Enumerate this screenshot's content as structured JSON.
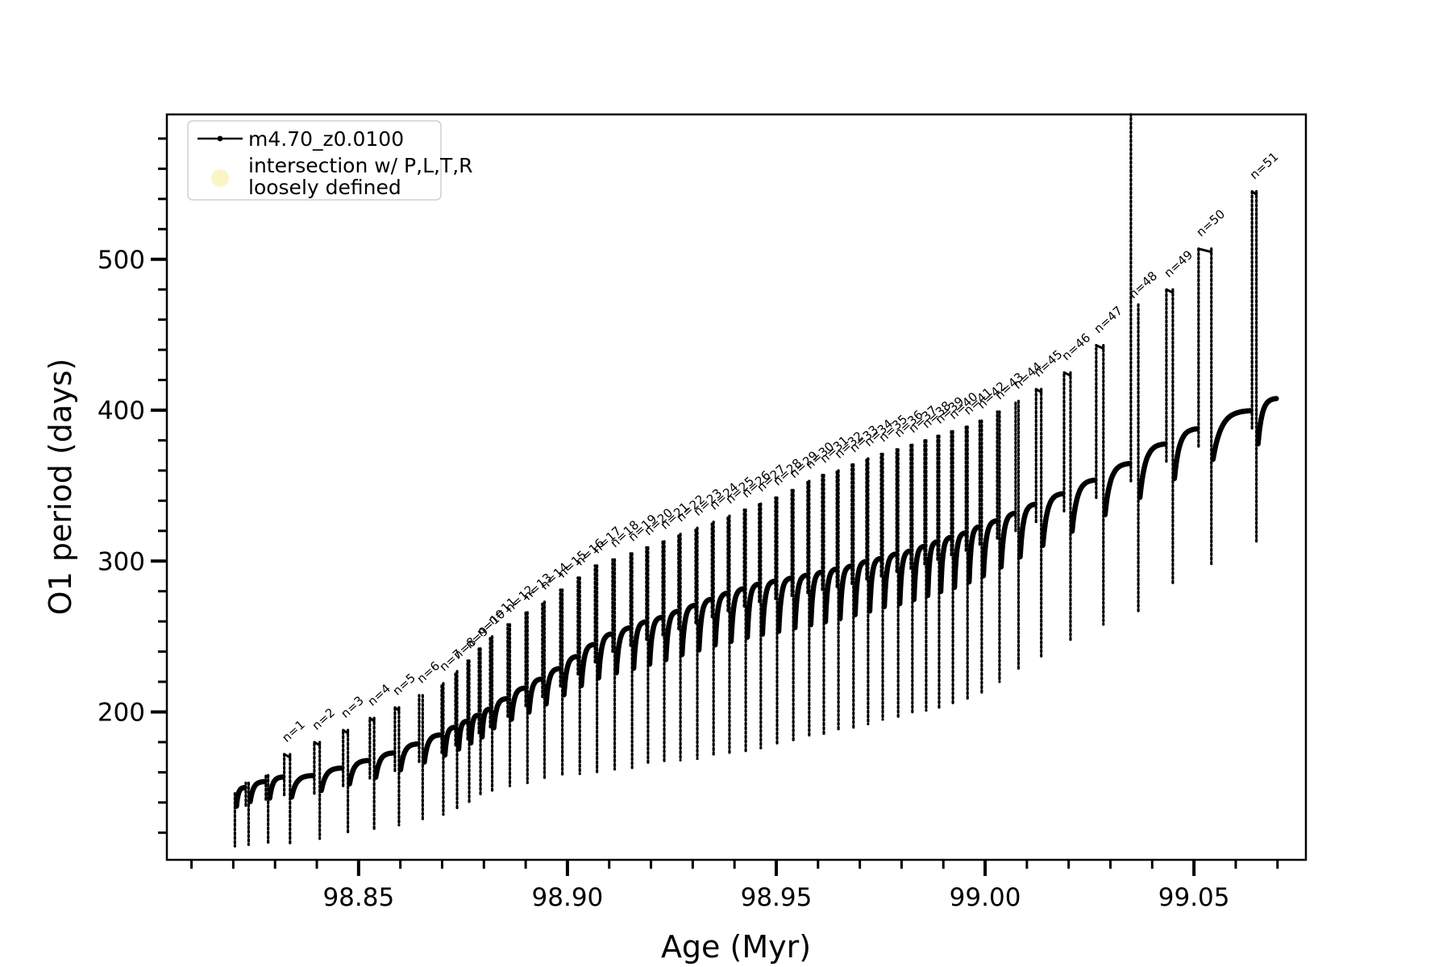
{
  "chart_data": {
    "type": "line",
    "title": "",
    "xlabel": "Age (Myr)",
    "ylabel": "O1 period (days)",
    "xlim": [
      98.8041,
      99.0768
    ],
    "ylim": [
      102,
      596
    ],
    "x_major_ticks": [
      98.85,
      98.9,
      98.95,
      99.0,
      99.05
    ],
    "x_minor_step": 0.01,
    "y_major_ticks": [
      200,
      300,
      400,
      500
    ],
    "y_minor_step": 20,
    "grid": false,
    "legend_position": "upper-left",
    "series_color": "#000000",
    "legend": {
      "entries": [
        {
          "type": "line-dot-marker",
          "label": "m4.70_z0.0100",
          "color": "#000000"
        },
        {
          "type": "circle-marker",
          "line1": "intersection w/ P,L,T,R",
          "line2": "loosely defined",
          "color": "#faf6c3"
        }
      ]
    },
    "series_label": "m4.70_z0.0100",
    "track_start": {
      "age": 98.82,
      "period": 146
    },
    "track_end": {
      "age": 99.07,
      "period": 408
    },
    "pulse_label_format": "n=",
    "pulses": [
      {
        "n": null,
        "age": 98.82,
        "spike": 146,
        "dip": 111,
        "fin_top": 150
      },
      {
        "n": null,
        "age": 98.823,
        "spike": 153,
        "dip": 112,
        "fin_top": 154
      },
      {
        "n": null,
        "age": 98.8278,
        "spike": 158,
        "dip": 113,
        "fin_top": 157
      },
      {
        "n": 1,
        "age": 98.8322,
        "spike": 172,
        "dip": 113,
        "fin_top": 158
      },
      {
        "n": 2,
        "age": 98.8394,
        "spike": 180,
        "dip": 116,
        "fin_top": 163
      },
      {
        "n": 3,
        "age": 98.8463,
        "spike": 188,
        "dip": 119,
        "fin_top": 168
      },
      {
        "n": 4,
        "age": 98.8527,
        "spike": 196,
        "dip": 122,
        "fin_top": 173
      },
      {
        "n": 5,
        "age": 98.8587,
        "spike": 203,
        "dip": 125,
        "fin_top": 179
      },
      {
        "n": 6,
        "age": 98.8645,
        "spike": 211,
        "dip": 128,
        "fin_top": 185
      },
      {
        "n": 7,
        "age": 98.8699,
        "spike": 219,
        "dip": 132,
        "fin_top": 190
      },
      {
        "n": 8,
        "age": 98.8732,
        "spike": 227,
        "dip": 136,
        "fin_top": 194
      },
      {
        "n": 9,
        "age": 98.8761,
        "spike": 234,
        "dip": 140,
        "fin_top": 198
      },
      {
        "n": 10,
        "age": 98.8788,
        "spike": 242,
        "dip": 144,
        "fin_top": 202
      },
      {
        "n": 11,
        "age": 98.8815,
        "spike": 250,
        "dip": 148,
        "fin_top": 209
      },
      {
        "n": 12,
        "age": 98.8857,
        "spike": 258,
        "dip": 151,
        "fin_top": 216
      },
      {
        "n": 13,
        "age": 98.89,
        "spike": 266,
        "dip": 153,
        "fin_top": 222
      },
      {
        "n": 14,
        "age": 98.894,
        "spike": 273,
        "dip": 155,
        "fin_top": 229
      },
      {
        "n": 15,
        "age": 98.8983,
        "spike": 281,
        "dip": 157,
        "fin_top": 237
      },
      {
        "n": 16,
        "age": 98.9025,
        "spike": 289,
        "dip": 159,
        "fin_top": 245
      },
      {
        "n": 17,
        "age": 98.9066,
        "spike": 297,
        "dip": 160,
        "fin_top": 252
      },
      {
        "n": 18,
        "age": 98.9108,
        "spike": 301,
        "dip": 162,
        "fin_top": 256
      },
      {
        "n": 19,
        "age": 98.9151,
        "spike": 305,
        "dip": 163,
        "fin_top": 260
      },
      {
        "n": 20,
        "age": 98.9189,
        "spike": 309,
        "dip": 165,
        "fin_top": 263
      },
      {
        "n": 21,
        "age": 98.9228,
        "spike": 313,
        "dip": 166,
        "fin_top": 267
      },
      {
        "n": 22,
        "age": 98.9266,
        "spike": 318,
        "dip": 168,
        "fin_top": 271
      },
      {
        "n": 23,
        "age": 98.9307,
        "spike": 322,
        "dip": 169,
        "fin_top": 275
      },
      {
        "n": 24,
        "age": 98.9346,
        "spike": 326,
        "dip": 171,
        "fin_top": 279
      },
      {
        "n": 25,
        "age": 98.9384,
        "spike": 330,
        "dip": 172,
        "fin_top": 282
      },
      {
        "n": 26,
        "age": 98.9423,
        "spike": 334,
        "dip": 174,
        "fin_top": 285
      },
      {
        "n": 27,
        "age": 98.9459,
        "spike": 338,
        "dip": 176,
        "fin_top": 287
      },
      {
        "n": 28,
        "age": 98.9498,
        "spike": 342,
        "dip": 178,
        "fin_top": 289
      },
      {
        "n": 29,
        "age": 98.9537,
        "spike": 347,
        "dip": 181,
        "fin_top": 291
      },
      {
        "n": 30,
        "age": 98.9575,
        "spike": 353,
        "dip": 183,
        "fin_top": 293
      },
      {
        "n": 31,
        "age": 98.961,
        "spike": 357,
        "dip": 185,
        "fin_top": 295
      },
      {
        "n": 32,
        "age": 98.9645,
        "spike": 360,
        "dip": 187,
        "fin_top": 297
      },
      {
        "n": 33,
        "age": 98.9681,
        "spike": 364,
        "dip": 189,
        "fin_top": 300
      },
      {
        "n": 34,
        "age": 98.9716,
        "spike": 368,
        "dip": 192,
        "fin_top": 302
      },
      {
        "n": 35,
        "age": 98.9751,
        "spike": 371,
        "dip": 195,
        "fin_top": 305
      },
      {
        "n": 36,
        "age": 98.9788,
        "spike": 374,
        "dip": 197,
        "fin_top": 307
      },
      {
        "n": 37,
        "age": 98.9822,
        "spike": 377,
        "dip": 199,
        "fin_top": 310
      },
      {
        "n": 38,
        "age": 98.9855,
        "spike": 380,
        "dip": 201,
        "fin_top": 313
      },
      {
        "n": 39,
        "age": 98.9886,
        "spike": 383,
        "dip": 203,
        "fin_top": 316
      },
      {
        "n": 40,
        "age": 98.9919,
        "spike": 386,
        "dip": 205,
        "fin_top": 319
      },
      {
        "n": 41,
        "age": 98.9954,
        "spike": 389,
        "dip": 208,
        "fin_top": 323
      },
      {
        "n": 42,
        "age": 98.9987,
        "spike": 393,
        "dip": 212,
        "fin_top": 327
      },
      {
        "n": 43,
        "age": 99.0029,
        "spike": 399,
        "dip": 220,
        "fin_top": 332
      },
      {
        "n": 44,
        "age": 99.0073,
        "spike": 406,
        "dip": 228,
        "fin_top": 338
      },
      {
        "n": 45,
        "age": 99.0122,
        "spike": 414,
        "dip": 237,
        "fin_top": 345
      },
      {
        "n": 46,
        "age": 99.0189,
        "spike": 425,
        "dip": 247,
        "fin_top": 354
      },
      {
        "n": 47,
        "age": 99.0266,
        "spike": 443,
        "dip": 258,
        "fin_top": 365
      },
      {
        "n": 48,
        "age": 99.0349,
        "spike": 604,
        "dip": 266,
        "fin_top": 378,
        "crash_top": 470,
        "label_at": 472
      },
      {
        "n": 49,
        "age": 99.0434,
        "spike": 480,
        "dip": 284,
        "fin_top": 388
      },
      {
        "n": 50,
        "age": 99.0511,
        "spike": 507,
        "dip": 298,
        "fin_top": 400
      },
      {
        "n": 51,
        "age": 99.0639,
        "spike": 545,
        "dip": 313,
        "fin_top": 408
      }
    ]
  }
}
